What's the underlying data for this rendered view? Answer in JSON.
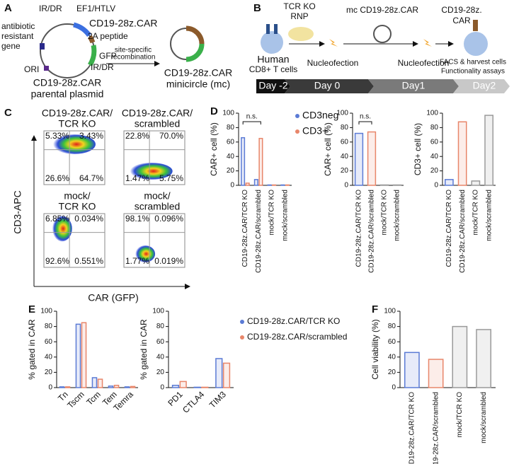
{
  "panel_a": {
    "label": "A",
    "labels": [
      "IR/DR",
      "EF1/HTLV",
      "CD19-28z.CAR",
      "2A peptide",
      "antibiotic",
      "resistant",
      "gene",
      "GFP",
      "IR/DR",
      "ORI",
      "CD19-28z.CAR",
      "parental plasmid",
      "site-specific",
      "recombination",
      "CD19-28z.CAR",
      "minicircle (mc)"
    ]
  },
  "panel_b": {
    "label": "B",
    "labels": [
      "TCR KO",
      "RNP",
      "mc CD19-28z.CAR",
      "CD19-28z.",
      "CAR",
      "Human",
      "CD8+ T cells",
      "Nucleofection",
      "Nucleofection",
      "FACS & harvest cells",
      "Functionality assays"
    ],
    "timeline": [
      "Day -2",
      "Day 0",
      "Day1",
      "Day2"
    ]
  },
  "panel_c": {
    "label": "C",
    "y_axis": "CD3-APC",
    "x_axis": "CAR (GFP)",
    "plots": [
      {
        "title": [
          "CD19-28z.CAR/",
          "TCR KO"
        ],
        "quadrants": [
          "5.33%",
          "3.43%",
          "26.6%",
          "64.7%"
        ]
      },
      {
        "title": [
          "CD19-28z.CAR/",
          "scrambled"
        ],
        "quadrants": [
          "22.8%",
          "70.0%",
          "1.47%",
          "5.75%"
        ]
      },
      {
        "title": [
          "mock/",
          "TCR KO"
        ],
        "quadrants": [
          "6.85%",
          "0.034%",
          "92.6%",
          "0.551%"
        ]
      },
      {
        "title": [
          "mock/",
          "scrambled"
        ],
        "quadrants": [
          "98.1%",
          "0.096%",
          "1.77%",
          "0.019%"
        ]
      }
    ]
  },
  "chart_data": [
    {
      "type": "bar",
      "label": "D",
      "y_label": "CAR+ cell (%)",
      "annotation": "n.s.",
      "legend": "upper right",
      "categories": [
        "CD19-28z.CAR/TCR KO",
        "CD19-28z.CAR/scrambled",
        "mock/TCR KO",
        "mock/scrambled"
      ],
      "series": [
        {
          "name": "CD3neg",
          "color": "#5b7bd5",
          "values": [
            66,
            8,
            0.5,
            0.5
          ]
        },
        {
          "name": "CD3+",
          "color": "#e8866a",
          "values": [
            3,
            65,
            0.5,
            0.5
          ]
        }
      ],
      "ylim": [
        0,
        100
      ],
      "yticks": [
        0,
        20,
        40,
        60,
        80,
        100
      ]
    },
    {
      "type": "bar",
      "y_label": "CAR+ cell (%)",
      "annotation": "n.s.",
      "categories": [
        "CD19-28z.CAR/TCR KO",
        "CD19-28z.CAR/scrambled",
        "mock/TCR KO",
        "mock/scrambled"
      ],
      "values": [
        72,
        74,
        0.5,
        0.5
      ],
      "colors": [
        "#5b7bd5",
        "#e8866a",
        "#9a9a9a",
        "#9a9a9a"
      ],
      "ylim": [
        0,
        100
      ],
      "yticks": [
        0,
        20,
        40,
        60,
        80,
        100
      ]
    },
    {
      "type": "bar",
      "y_label": "CD3+ cell (%)",
      "categories": [
        "CD19-28z.CAR/TCR KO",
        "CD19-28z.CAR/scrambled",
        "mock/TCR KO",
        "mock/scrambled"
      ],
      "values": [
        8,
        88,
        6,
        97
      ],
      "colors": [
        "#5b7bd5",
        "#e8866a",
        "#9a9a9a",
        "#9a9a9a"
      ],
      "ylim": [
        0,
        100
      ],
      "yticks": [
        0,
        20,
        40,
        60,
        80,
        100
      ]
    },
    {
      "type": "bar",
      "label": "E",
      "y_label": "% gated in CAR",
      "categories": [
        "Tn",
        "Tscm",
        "Tcm",
        "Tem",
        "Temra"
      ],
      "series": [
        {
          "name": "CD19-28z.CAR/TCR KO",
          "color": "#5b7bd5",
          "values": [
            1,
            83,
            13,
            2,
            1
          ]
        },
        {
          "name": "CD19-28z.CAR/scrambled",
          "color": "#e8866a",
          "values": [
            1,
            85,
            11,
            3,
            1.5
          ]
        }
      ],
      "ylim": [
        0,
        100
      ],
      "yticks": [
        0,
        20,
        40,
        60,
        80,
        100
      ]
    },
    {
      "type": "bar",
      "y_label": "% gated in CAR",
      "legend": "right",
      "categories": [
        "PD1",
        "CTLA4",
        "TIM3"
      ],
      "series": [
        {
          "name": "CD19-28z.CAR/TCR KO",
          "color": "#5b7bd5",
          "values": [
            3,
            0.5,
            38
          ]
        },
        {
          "name": "CD19-28z.CAR/scrambled",
          "color": "#e8866a",
          "values": [
            8,
            0.5,
            32
          ]
        }
      ],
      "ylim": [
        0,
        100
      ],
      "yticks": [
        0,
        20,
        40,
        60,
        80,
        100
      ]
    },
    {
      "type": "bar",
      "label": "F",
      "y_label": "Cell viability (%)",
      "categories": [
        "CD19-28z.CAR/TCR KO",
        "CD19-28z.CAR/scrambled",
        "mock/TCR KO",
        "mock/scrambled"
      ],
      "values": [
        46,
        37,
        80,
        76
      ],
      "colors": [
        "#5b7bd5",
        "#e8866a",
        "#9a9a9a",
        "#9a9a9a"
      ],
      "ylim": [
        0,
        100
      ],
      "yticks": [
        0,
        20,
        40,
        60,
        80,
        100
      ]
    }
  ]
}
